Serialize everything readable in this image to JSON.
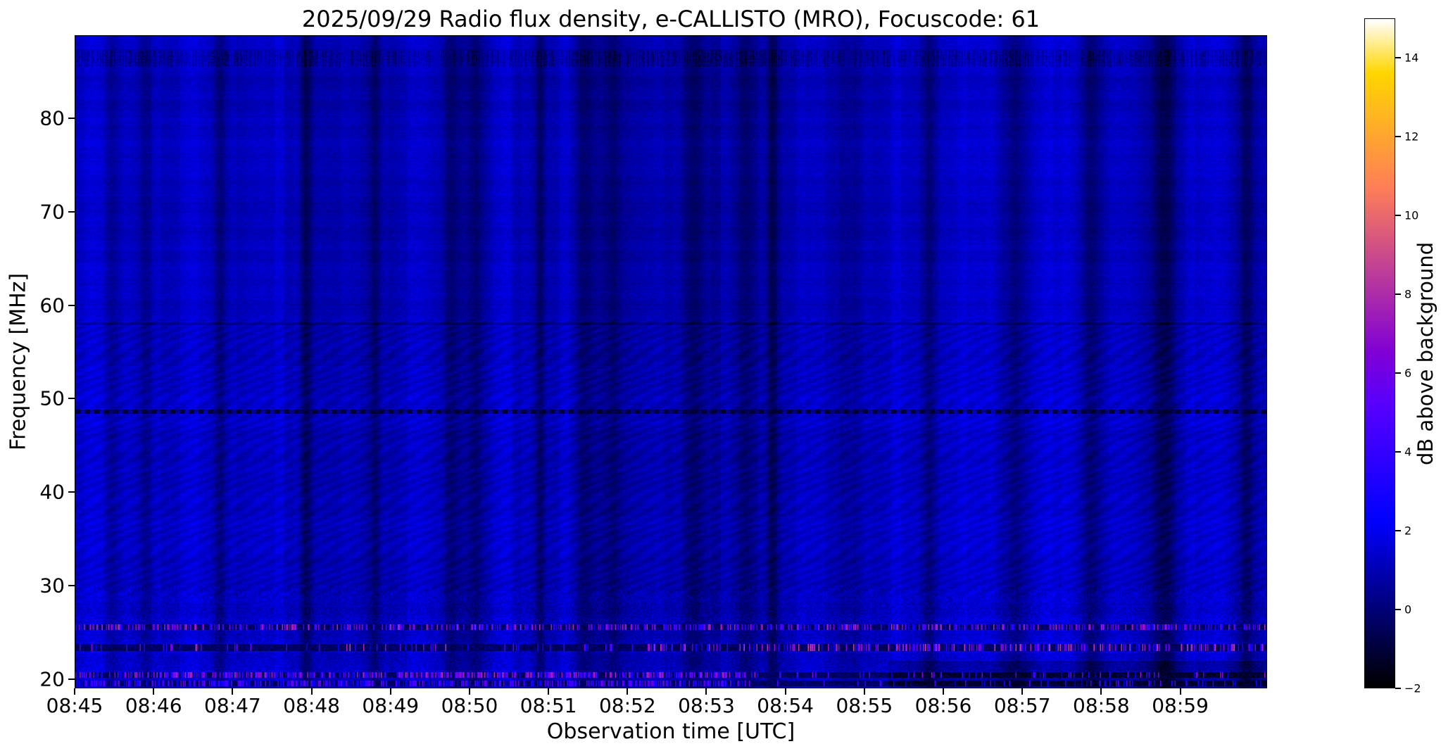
{
  "chart_data": {
    "type": "heatmap",
    "title": "2025/09/29  Radio flux density, e-CALLISTO (MRO), Focuscode: 61",
    "date": "2025/09/29",
    "instrument": "e-CALLISTO (MRO)",
    "focuscode": "61",
    "xlabel": "Observation time [UTC]",
    "ylabel": "Frequency [MHz]",
    "colorbar_label": "dB above background",
    "x_tick_labels": [
      "08:45",
      "08:46",
      "08:47",
      "08:48",
      "08:49",
      "08:50",
      "08:51",
      "08:52",
      "08:53",
      "08:54",
      "08:55",
      "08:56",
      "08:57",
      "08:58",
      "08:59"
    ],
    "x_tick_minutes": [
      0,
      1,
      2,
      3,
      4,
      5,
      6,
      7,
      8,
      9,
      10,
      11,
      12,
      13,
      14
    ],
    "x_range_minutes": [
      0,
      15.1
    ],
    "y_ticks_mhz": [
      20,
      30,
      40,
      50,
      60,
      70,
      80
    ],
    "y_range_mhz": [
      19.0,
      88.9
    ],
    "value_range_db": [
      -2,
      15
    ],
    "colorbar_ticks_db": [
      -2,
      0,
      2,
      4,
      6,
      8,
      10,
      12,
      14
    ],
    "colormap": "gnuplot2",
    "background_level_db": 0.9,
    "grid": false,
    "legend": "none",
    "features": {
      "dark_dashed_line_mhz": 48.6,
      "faint_dark_line_mhz": 58.0,
      "dark_speckled_rows_mhz": [
        85.8,
        87.4
      ],
      "ripple_band_mhz": [
        29,
        58.5
      ],
      "vertical_banding": "per-minute alternating bright/dark instrument bands",
      "rfi_bands": [
        {
          "freq_mhz": 25.5,
          "peak_db": 8,
          "coverage": 0.45,
          "extent": "full"
        },
        {
          "freq_mhz": 23.3,
          "peak_db": 9,
          "coverage": 0.38,
          "extent": "right"
        },
        {
          "freq_mhz": 20.4,
          "peak_db": 8,
          "coverage": 0.6,
          "extent": "left"
        },
        {
          "freq_mhz": 19.4,
          "peak_db": 6,
          "coverage": 0.55,
          "extent": "left"
        }
      ]
    }
  }
}
